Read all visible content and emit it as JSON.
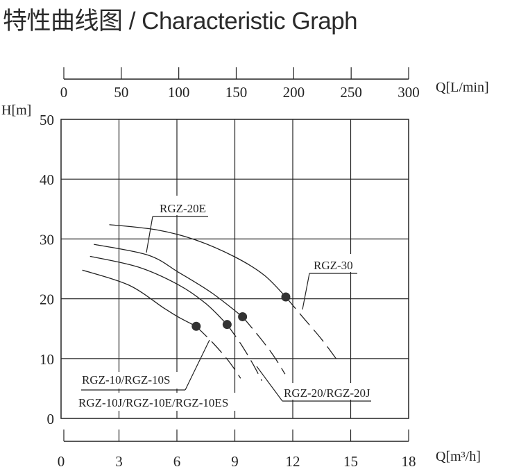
{
  "title": "特性曲线图 / Characteristic Graph",
  "chart_data": {
    "type": "line",
    "title": "特性曲线图 / Characteristic Graph",
    "ylabel": "H[m]",
    "xlabel": "Q[m³/h]",
    "x2label": "Q[L/min]",
    "xlim": [
      0,
      18
    ],
    "ylim": [
      0,
      50
    ],
    "x2lim": [
      0,
      300
    ],
    "xticks": [
      "0",
      "3",
      "6",
      "9",
      "12",
      "15",
      "18"
    ],
    "x2ticks": [
      "0",
      "50",
      "100",
      "150",
      "200",
      "250",
      "300"
    ],
    "yticks": [
      "0",
      "10",
      "20",
      "30",
      "40",
      "50"
    ],
    "grid": true,
    "line_color": "#222222",
    "series": [
      {
        "name": "RGZ-30",
        "x": [
          2.5,
          5.0,
          7.0,
          9.0,
          10.5,
          11.64
        ],
        "y": [
          32.4,
          31.5,
          29.8,
          27.0,
          24.0,
          20.3
        ],
        "dashed_x": [
          11.64,
          12.5,
          13.5,
          14.4
        ],
        "dashed_y": [
          20.3,
          17.0,
          13.2,
          9.3
        ],
        "point": [
          11.64,
          20.3
        ]
      },
      {
        "name": "RGZ-20E",
        "x": [
          1.7,
          4.5,
          6.1,
          7.8,
          9.4
        ],
        "y": [
          29.1,
          27.3,
          24.4,
          21.0,
          17.0
        ],
        "dashed_x": [
          9.4,
          10.3,
          11.0,
          11.6
        ],
        "dashed_y": [
          17.0,
          13.5,
          10.5,
          7.4
        ],
        "point": [
          9.4,
          17.0
        ]
      },
      {
        "name": "RGZ-20/RGZ-20J",
        "x": [
          1.5,
          4.0,
          6.1,
          7.5,
          8.6
        ],
        "y": [
          27.1,
          25.3,
          22.3,
          19.2,
          15.7
        ],
        "dashed_x": [
          8.6,
          9.3,
          9.9,
          10.4
        ],
        "dashed_y": [
          15.7,
          12.5,
          9.3,
          6.3
        ],
        "point": [
          8.6,
          15.7
        ]
      },
      {
        "name": "RGZ-10/RGZ-10S",
        "x": [
          1.1,
          3.5,
          5.3,
          6.1,
          7.0
        ],
        "y": [
          24.8,
          22.3,
          18.5,
          16.9,
          15.4
        ],
        "dashed_x": [
          7.0,
          7.9,
          8.7,
          9.3
        ],
        "dashed_y": [
          15.4,
          12.5,
          9.5,
          6.7
        ],
        "point": [
          7.0,
          15.4
        ]
      }
    ],
    "annotations": [
      "RGZ-20E",
      "RGZ-30",
      "RGZ-10/RGZ-10S",
      "RGZ-10J/RGZ-10E/RGZ-10ES",
      "RGZ-20/RGZ-20J"
    ]
  }
}
